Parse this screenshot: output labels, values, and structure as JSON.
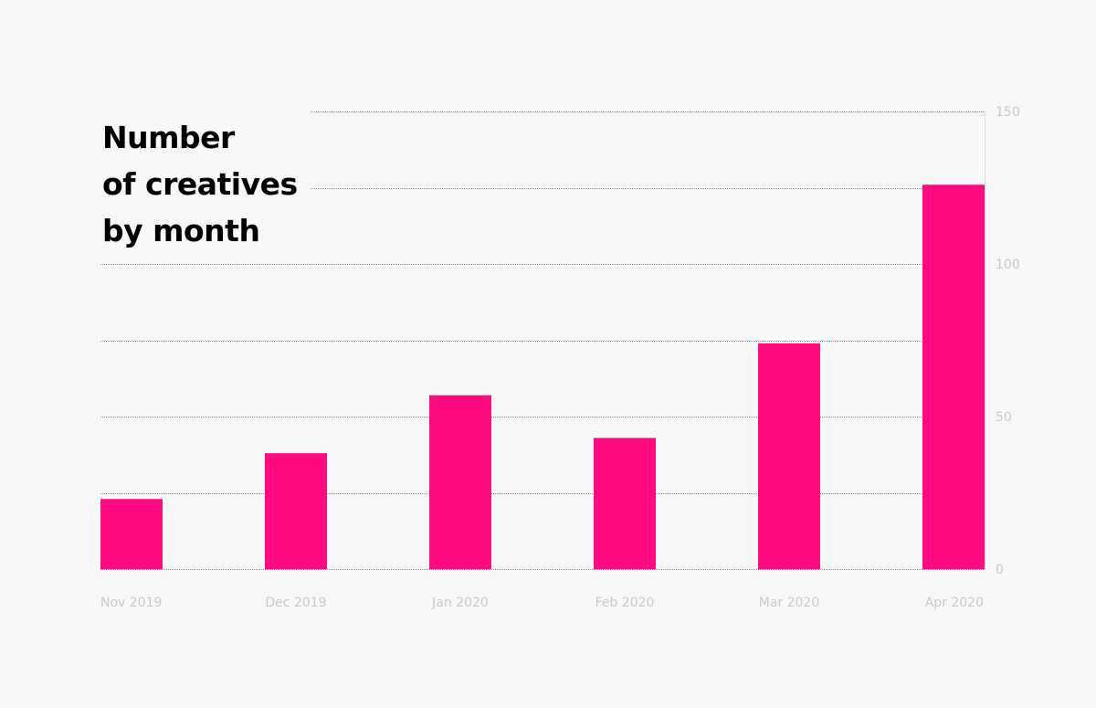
{
  "chart_data": {
    "type": "bar",
    "title_lines": [
      "Number",
      "of creatives",
      "by month"
    ],
    "categories": [
      "Nov 2019",
      "Dec 2019",
      "Jan 2020",
      "Feb 2020",
      "Mar 2020",
      "Apr 2020"
    ],
    "values": [
      23,
      38,
      57,
      43,
      74,
      126
    ],
    "y_ticks": [
      "0",
      "50",
      "100",
      "150"
    ],
    "ylim": [
      0,
      150
    ],
    "y_axis_side": "right",
    "grid": true,
    "bar_color": "#ff0a80",
    "legend": "none"
  }
}
